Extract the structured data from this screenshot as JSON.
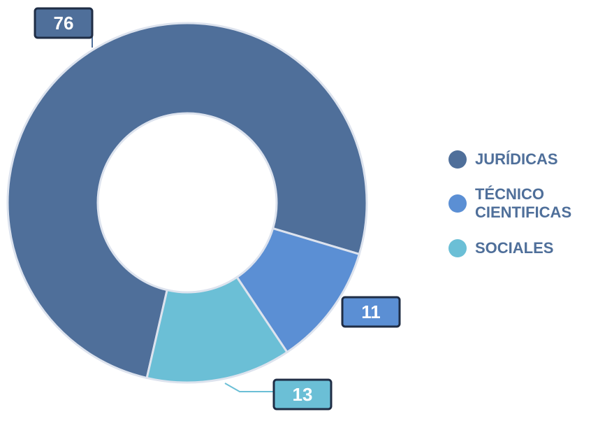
{
  "chart_data": {
    "type": "donut",
    "categories": [
      "JURÍDICAS",
      "TÉCNICO CIENTIFICAS",
      "SOCIALES"
    ],
    "values": [
      76,
      11,
      13
    ],
    "colors": [
      "#4f6f9a",
      "#5b8fd4",
      "#6bbfd6"
    ],
    "legend": "right"
  }
}
